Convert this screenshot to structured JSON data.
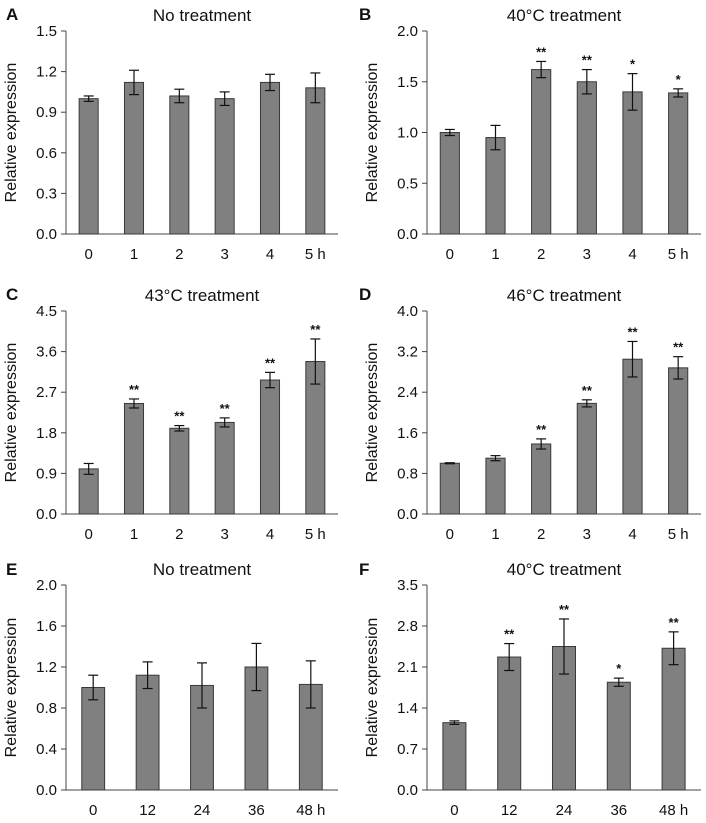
{
  "figure": {
    "ylabel": "Relative expression"
  },
  "colors": {
    "bar": "#808080",
    "bar_stroke": "#3a3a3a",
    "text": "#111111"
  },
  "chart_data": [
    {
      "panel": "A",
      "type": "bar",
      "title": "No treatment",
      "categories": [
        "0",
        "1",
        "2",
        "3",
        "4",
        "5 h"
      ],
      "values": [
        1.0,
        1.12,
        1.02,
        1.0,
        1.12,
        1.08
      ],
      "errors": [
        0.02,
        0.09,
        0.05,
        0.05,
        0.06,
        0.11
      ],
      "significance": [
        "",
        "",
        "",
        "",
        "",
        ""
      ],
      "ylabel": "Relative expression",
      "ylim": [
        0,
        1.5
      ],
      "yticks": [
        "0.0",
        "0.3",
        "0.6",
        "0.9",
        "1.2",
        "1.5"
      ]
    },
    {
      "panel": "B",
      "type": "bar",
      "title": "40°C treatment",
      "categories": [
        "0",
        "1",
        "2",
        "3",
        "4",
        "5 h"
      ],
      "values": [
        1.0,
        0.95,
        1.62,
        1.5,
        1.4,
        1.39
      ],
      "errors": [
        0.03,
        0.12,
        0.08,
        0.12,
        0.18,
        0.04
      ],
      "significance": [
        "",
        "",
        "**",
        "**",
        "*",
        "*"
      ],
      "ylabel": "Relative expression",
      "ylim": [
        0,
        2.0
      ],
      "yticks": [
        "0.0",
        "0.5",
        "1.0",
        "1.5",
        "2.0"
      ]
    },
    {
      "panel": "C",
      "type": "bar",
      "title": "43°C treatment",
      "categories": [
        "0",
        "1",
        "2",
        "3",
        "4",
        "5 h"
      ],
      "values": [
        1.0,
        2.45,
        1.9,
        2.03,
        2.97,
        3.38
      ],
      "errors": [
        0.12,
        0.1,
        0.06,
        0.1,
        0.17,
        0.5
      ],
      "significance": [
        "",
        "**",
        "**",
        "**",
        "**",
        "**"
      ],
      "ylabel": "Relative expression",
      "ylim": [
        0,
        4.5
      ],
      "yticks": [
        "0.0",
        "0.9",
        "1.8",
        "2.7",
        "3.6",
        "4.5"
      ]
    },
    {
      "panel": "D",
      "type": "bar",
      "title": "46°C treatment",
      "categories": [
        "0",
        "1",
        "2",
        "3",
        "4",
        "5 h"
      ],
      "values": [
        1.0,
        1.1,
        1.38,
        2.18,
        3.05,
        2.88
      ],
      "errors": [
        0.01,
        0.05,
        0.1,
        0.07,
        0.35,
        0.22
      ],
      "significance": [
        "",
        "",
        "**",
        "**",
        "**",
        "**"
      ],
      "ylabel": "Relative expression",
      "ylim": [
        0,
        4.0
      ],
      "yticks": [
        "0.0",
        "0.8",
        "1.6",
        "2.4",
        "3.2",
        "4.0"
      ]
    },
    {
      "panel": "E",
      "type": "bar",
      "title": "No treatment",
      "categories": [
        "0",
        "12",
        "24",
        "36",
        "48 h"
      ],
      "values": [
        1.0,
        1.12,
        1.02,
        1.2,
        1.03
      ],
      "errors": [
        0.12,
        0.13,
        0.22,
        0.23,
        0.23
      ],
      "significance": [
        "",
        "",
        "",
        "",
        ""
      ],
      "ylabel": "Relative expression",
      "ylim": [
        0,
        2.0
      ],
      "yticks": [
        "0.0",
        "0.4",
        "0.8",
        "1.2",
        "1.6",
        "2.0"
      ]
    },
    {
      "panel": "F",
      "type": "bar",
      "title": "40°C treatment",
      "categories": [
        "0",
        "12",
        "24",
        "36",
        "48 h"
      ],
      "values": [
        1.15,
        2.27,
        2.45,
        1.84,
        2.42
      ],
      "errors": [
        0.03,
        0.23,
        0.47,
        0.07,
        0.28
      ],
      "significance": [
        "",
        "**",
        "**",
        "*",
        "**"
      ],
      "ylabel": "Relative expression",
      "ylim": [
        0,
        3.5
      ],
      "yticks": [
        "0.0",
        "0.7",
        "1.4",
        "2.1",
        "2.8",
        "3.5"
      ]
    }
  ]
}
